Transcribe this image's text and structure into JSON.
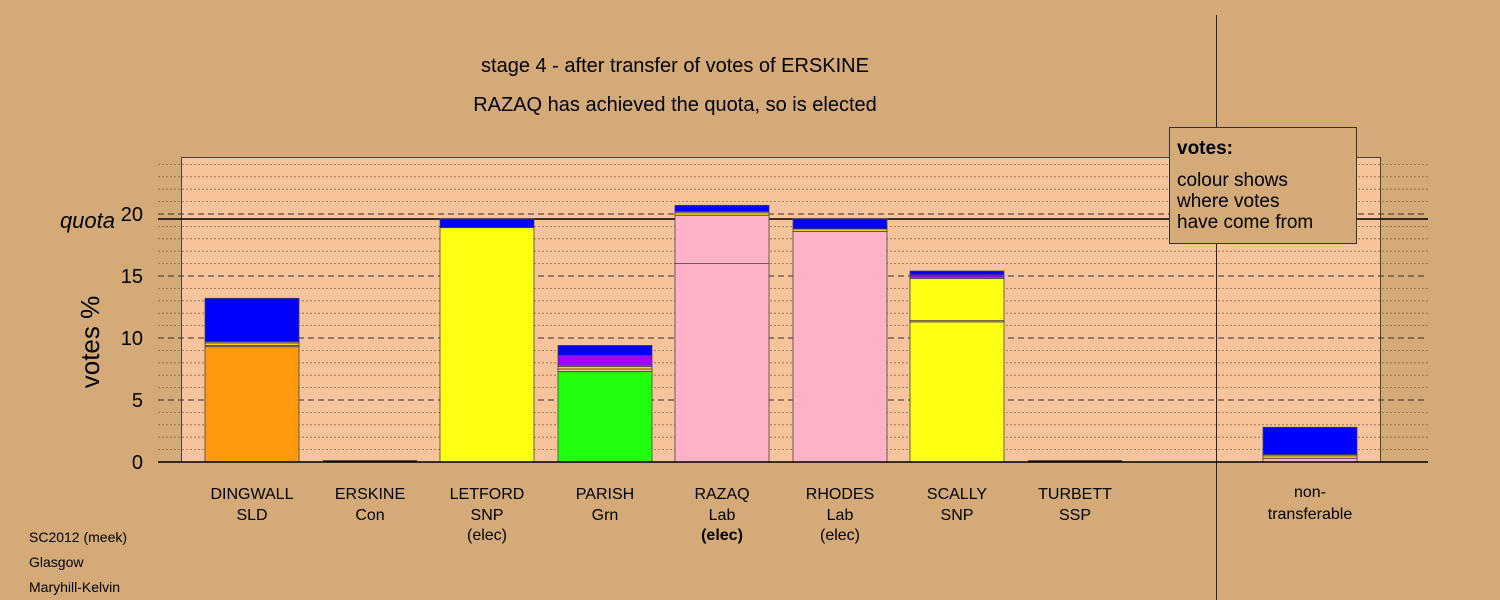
{
  "chart_data": {
    "type": "bar",
    "stacked": true,
    "title": "stage 4 - after transfer of votes of ERSKINE",
    "subtitle": "RAZAQ has achieved the quota, so is elected",
    "ylabel": "votes %",
    "quota_label": "quota",
    "quota": 19.6,
    "ylim": [
      0,
      24
    ],
    "yticks": [
      0,
      5,
      10,
      15,
      20
    ],
    "grid": "dashed horizontal lines at every 1%, major at every 5%",
    "legend": {
      "title": "votes:",
      "lines": [
        "colour shows",
        "where votes",
        "have come from"
      ],
      "placement": "top-right"
    },
    "party_colors": {
      "SLD": "#ff9a0e",
      "SNP": "#ffff14",
      "Grn": "#22ff0e",
      "Lab": "#ffb1c6",
      "Con": "#0000ff",
      "SSP": "#a200ff",
      "other": "#ffd700"
    },
    "candidates": [
      {
        "name": "DINGWALL",
        "party": "SLD",
        "status": "",
        "segments": [
          {
            "from": "SLD",
            "value": 9.3
          },
          {
            "from": "Lab",
            "value": 0.1
          },
          {
            "from": "other",
            "value": 0.2
          },
          {
            "from": "Lab",
            "value": 0.1
          },
          {
            "from": "Con",
            "value": 3.5
          }
        ]
      },
      {
        "name": "ERSKINE",
        "party": "Con",
        "status": "",
        "segments": []
      },
      {
        "name": "LETFORD",
        "party": "SNP",
        "status": "(elec)",
        "segments": [
          {
            "from": "SNP",
            "value": 18.9
          },
          {
            "from": "Con",
            "value": 0.7
          }
        ]
      },
      {
        "name": "PARISH",
        "party": "Grn",
        "status": "",
        "segments": [
          {
            "from": "Grn",
            "value": 7.3
          },
          {
            "from": "Lab",
            "value": 0.2
          },
          {
            "from": "other",
            "value": 0.2
          },
          {
            "from": "Lab",
            "value": 0.1
          },
          {
            "from": "SSP",
            "value": 0.8
          },
          {
            "from": "Con",
            "value": 0.8
          }
        ]
      },
      {
        "name": "RAZAQ",
        "party": "Lab",
        "status": "(elec)",
        "status_bold": true,
        "segments": [
          {
            "from": "Lab",
            "value": 16.0
          },
          {
            "from": "Lab",
            "value": 3.9
          },
          {
            "from": "other",
            "value": 0.2
          },
          {
            "from": "Lab",
            "value": 0.1
          },
          {
            "from": "Con",
            "value": 0.5
          }
        ]
      },
      {
        "name": "RHODES",
        "party": "Lab",
        "status": "(elec)",
        "segments": [
          {
            "from": "Lab",
            "value": 18.6
          },
          {
            "from": "other",
            "value": 0.2
          },
          {
            "from": "Con",
            "value": 0.8
          }
        ]
      },
      {
        "name": "SCALLY",
        "party": "SNP",
        "status": "",
        "segments": [
          {
            "from": "SNP",
            "value": 11.3
          },
          {
            "from": "Lab",
            "value": 0.1
          },
          {
            "from": "SNP",
            "value": 3.4
          },
          {
            "from": "Lab",
            "value": 0.1
          },
          {
            "from": "SSP",
            "value": 0.2
          },
          {
            "from": "Con",
            "value": 0.3
          }
        ]
      },
      {
        "name": "TURBETT",
        "party": "SSP",
        "status": "",
        "segments": []
      }
    ],
    "non_transferable": {
      "label_lines": [
        "non-",
        "transferable"
      ],
      "segments": [
        {
          "from": "Lab",
          "value": 0.3
        },
        {
          "from": "other",
          "value": 0.2
        },
        {
          "from": "Lab",
          "value": 0.1
        },
        {
          "from": "Con",
          "value": 2.2
        }
      ]
    }
  },
  "footer": {
    "line1": "SC2012 (meek)",
    "line2": "Glasgow",
    "line3": "Maryhill-Kelvin"
  }
}
